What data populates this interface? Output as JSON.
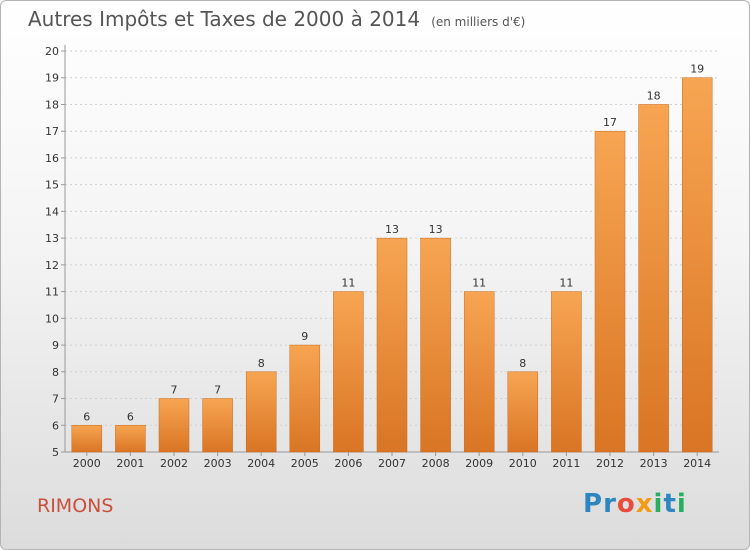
{
  "title": "Autres Impôts et Taxes de 2000 à 2014",
  "unit": "(en milliers d'€)",
  "commune": "RIMONS",
  "logo": {
    "letters": [
      {
        "ch": "P",
        "color": "#2e86c1"
      },
      {
        "ch": "r",
        "color": "#2e86c1"
      },
      {
        "ch": "o",
        "color": "#e74c3c"
      },
      {
        "ch": "x",
        "color": "#f39c12"
      },
      {
        "ch": "i",
        "color": "#27ae60"
      },
      {
        "ch": "t",
        "color": "#2e86c1"
      },
      {
        "ch": "i",
        "color": "#27ae60"
      }
    ]
  },
  "colors": {
    "bar_top": "#f7a552",
    "bar_bottom": "#d97524",
    "axis_text": "#333333",
    "grid": "#d0d0d0"
  },
  "chart_data": {
    "type": "bar",
    "categories": [
      "2000",
      "2001",
      "2002",
      "2003",
      "2004",
      "2005",
      "2006",
      "2007",
      "2008",
      "2009",
      "2010",
      "2011",
      "2012",
      "2013",
      "2014"
    ],
    "values": [
      6,
      6,
      7,
      7,
      8,
      9,
      11,
      13,
      13,
      11,
      8,
      11,
      17,
      18,
      19
    ],
    "data_labels": [
      "6",
      "6",
      "7",
      "7",
      "8",
      "9",
      "11",
      "13",
      "13",
      "11",
      "8",
      "11",
      "17",
      "18",
      "19"
    ],
    "y_ticks": [
      5,
      6,
      7,
      8,
      9,
      10,
      11,
      12,
      13,
      14,
      15,
      16,
      17,
      18,
      19,
      20
    ],
    "ylim": [
      5,
      20
    ],
    "xlabel": "",
    "ylabel": "",
    "grid": true
  }
}
